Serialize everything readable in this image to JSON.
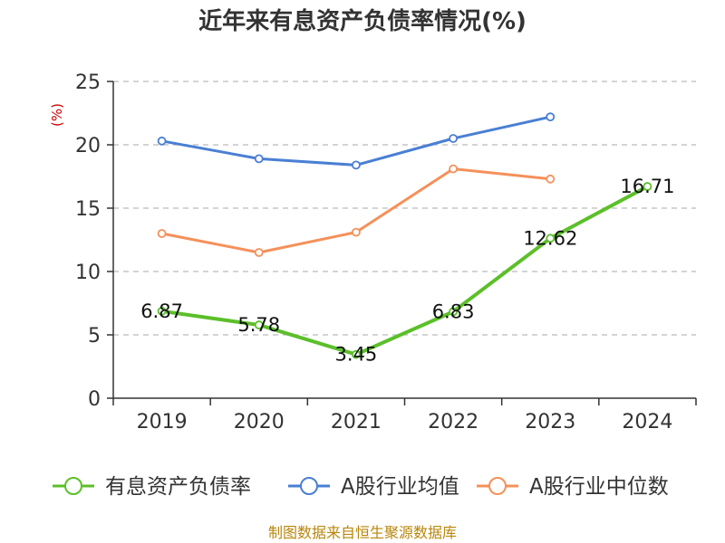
{
  "chart_data": {
    "type": "line",
    "title": "近年来有息资产负债率情况(%)",
    "ylabel": "(%)",
    "categories": [
      "2019",
      "2020",
      "2021",
      "2022",
      "2023",
      "2024"
    ],
    "ylim": [
      0,
      25
    ],
    "yticks": [
      0,
      5,
      10,
      15,
      20,
      25
    ],
    "grid": true,
    "legend_position": "bottom",
    "series": [
      {
        "name": "有息资产负债率",
        "color": "#5cbf2a",
        "values": [
          6.87,
          5.78,
          3.45,
          6.83,
          12.62,
          16.71
        ],
        "labels": [
          "6.87",
          "5.78",
          "3.45",
          "6.83",
          "12.62",
          "16.71"
        ]
      },
      {
        "name": "A股行业均值",
        "color": "#4a7fd4",
        "values": [
          20.3,
          18.9,
          18.4,
          20.5,
          22.2,
          null
        ]
      },
      {
        "name": "A股行业中位数",
        "color": "#f5905a",
        "values": [
          13.0,
          11.5,
          13.1,
          18.1,
          17.3,
          null
        ]
      }
    ],
    "source": "制图数据来自恒生聚源数据库"
  }
}
